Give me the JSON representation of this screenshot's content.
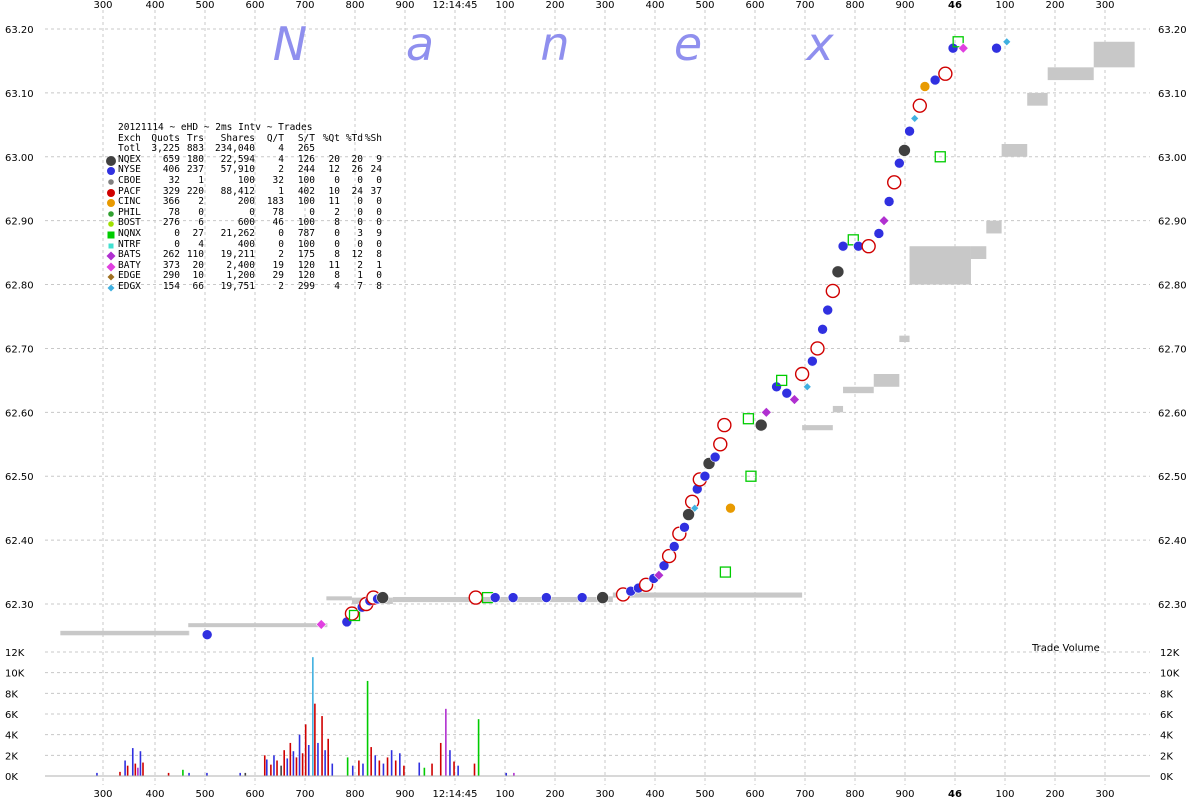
{
  "watermark": [
    "N",
    "a",
    "n",
    "e",
    "x"
  ],
  "time_label": "12:14:45",
  "minute_marker": "46",
  "volume_label": "Trade Volume",
  "stats": {
    "title": "20121114 ~ eHD ~ 2ms Intv ~ Trades",
    "headers": [
      "Exch",
      "Quots",
      "Trs",
      "Shares",
      "Q/T",
      "S/T",
      "%Qt",
      "%Td",
      "%Sh"
    ],
    "total": [
      "Totl",
      "3,225",
      "883",
      "234,040",
      "4",
      "265",
      "",
      "",
      ""
    ],
    "rows": [
      {
        "exch": "NQEX",
        "quots": "659",
        "trs": "180",
        "shares": "22,594",
        "qt": "4",
        "st": "126",
        "pqt": "20",
        "ptd": "20",
        "psh": "9",
        "color": "#404040",
        "shape": "circle-big"
      },
      {
        "exch": "NYSE",
        "quots": "406",
        "trs": "237",
        "shares": "57,910",
        "qt": "2",
        "st": "244",
        "pqt": "12",
        "ptd": "26",
        "psh": "24",
        "color": "#3030e0",
        "shape": "circle"
      },
      {
        "exch": "CBOE",
        "quots": "32",
        "trs": "1",
        "shares": "100",
        "qt": "32",
        "st": "100",
        "pqt": "0",
        "ptd": "0",
        "psh": "0",
        "color": "#808080",
        "shape": "circle-small"
      },
      {
        "exch": "PACF",
        "quots": "329",
        "trs": "220",
        "shares": "88,412",
        "qt": "1",
        "st": "402",
        "pqt": "10",
        "ptd": "24",
        "psh": "37",
        "color": "#d00000",
        "shape": "circle"
      },
      {
        "exch": "CINC",
        "quots": "366",
        "trs": "2",
        "shares": "200",
        "qt": "183",
        "st": "100",
        "pqt": "11",
        "ptd": "0",
        "psh": "0",
        "color": "#e89a00",
        "shape": "circle"
      },
      {
        "exch": "PHIL",
        "quots": "78",
        "trs": "0",
        "shares": "0",
        "qt": "78",
        "st": "0",
        "pqt": "2",
        "ptd": "0",
        "psh": "0",
        "color": "#30a030",
        "shape": "circle-small"
      },
      {
        "exch": "BOST",
        "quots": "276",
        "trs": "6",
        "shares": "600",
        "qt": "46",
        "st": "100",
        "pqt": "8",
        "ptd": "0",
        "psh": "0",
        "color": "#a0e000",
        "shape": "circle-small"
      },
      {
        "exch": "NQNX",
        "quots": "0",
        "trs": "27",
        "shares": "21,262",
        "qt": "0",
        "st": "787",
        "pqt": "0",
        "ptd": "3",
        "psh": "9",
        "color": "#00cc00",
        "shape": "square"
      },
      {
        "exch": "NTRF",
        "quots": "0",
        "trs": "4",
        "shares": "400",
        "qt": "0",
        "st": "100",
        "pqt": "0",
        "ptd": "0",
        "psh": "0",
        "color": "#40e0d0",
        "shape": "square-small"
      },
      {
        "exch": "BATS",
        "quots": "262",
        "trs": "110",
        "shares": "19,211",
        "qt": "2",
        "st": "175",
        "pqt": "8",
        "ptd": "12",
        "psh": "8",
        "color": "#b030d0",
        "shape": "diamond"
      },
      {
        "exch": "BATY",
        "quots": "373",
        "trs": "20",
        "shares": "2,400",
        "qt": "19",
        "st": "120",
        "pqt": "11",
        "ptd": "2",
        "psh": "1",
        "color": "#e040e0",
        "shape": "diamond"
      },
      {
        "exch": "EDGE",
        "quots": "290",
        "trs": "10",
        "shares": "1,200",
        "qt": "29",
        "st": "120",
        "pqt": "8",
        "ptd": "1",
        "psh": "0",
        "color": "#a07020",
        "shape": "diamond-small"
      },
      {
        "exch": "EDGX",
        "quots": "154",
        "trs": "66",
        "shares": "19,751",
        "qt": "2",
        "st": "299",
        "pqt": "4",
        "ptd": "7",
        "psh": "8",
        "color": "#40b0e0",
        "shape": "diamond-small"
      }
    ]
  },
  "chart_data": {
    "type": "scatter",
    "x_ticks_ms": [
      "300",
      "400",
      "500",
      "600",
      "700",
      "800",
      "900",
      "12:14:45",
      "100",
      "200",
      "300",
      "400",
      "500",
      "600",
      "700",
      "800",
      "900",
      "46",
      "100",
      "200",
      "300"
    ],
    "price_ticks": [
      "63.20",
      "63.10",
      "63.00",
      "62.90",
      "62.80",
      "62.70",
      "62.60",
      "62.50",
      "62.40",
      "62.30"
    ],
    "price_range": [
      62.235,
      63.22
    ],
    "volume_ticks": [
      "12K",
      "10K",
      "8K",
      "6K",
      "4K",
      "2K",
      "0K"
    ],
    "volume_range": [
      0,
      12000
    ],
    "x_range_ms": [
      200,
      2360
    ],
    "grid": true,
    "nbbo_band": [
      [
        230,
        62.251,
        62.258
      ],
      [
        480,
        62.251,
        62.258
      ],
      [
        480,
        62.264,
        62.27
      ],
      [
        750,
        62.264,
        62.27
      ],
      [
        750,
        62.306,
        62.312
      ],
      [
        800,
        62.3,
        62.31
      ],
      [
        880,
        62.303,
        62.311
      ],
      [
        1280,
        62.303,
        62.312
      ],
      [
        1310,
        62.31,
        62.318
      ],
      [
        1680,
        62.572,
        62.58
      ],
      [
        1740,
        62.6,
        62.61
      ],
      [
        1760,
        62.63,
        62.64
      ],
      [
        1820,
        62.64,
        62.66
      ],
      [
        1870,
        62.71,
        62.72
      ],
      [
        1890,
        62.8,
        62.86
      ],
      [
        2010,
        62.84,
        62.86
      ],
      [
        2040,
        62.88,
        62.9
      ],
      [
        2070,
        63.0,
        63.02
      ],
      [
        2120,
        63.08,
        63.1
      ],
      [
        2160,
        63.12,
        63.14
      ],
      [
        2250,
        63.14,
        63.18
      ],
      [
        2330,
        63.16,
        63.21
      ]
    ],
    "trades": [
      {
        "t": 517,
        "p": 62.252,
        "ex": "NYSE"
      },
      {
        "t": 740,
        "p": 62.268,
        "ex": "BATY"
      },
      {
        "t": 790,
        "p": 62.272,
        "ex": "NYSE"
      },
      {
        "t": 800,
        "p": 62.285,
        "ex": "PACF"
      },
      {
        "t": 805,
        "p": 62.282,
        "ex": "NQNX"
      },
      {
        "t": 820,
        "p": 62.295,
        "ex": "NYSE"
      },
      {
        "t": 828,
        "p": 62.3,
        "ex": "PACF"
      },
      {
        "t": 835,
        "p": 62.305,
        "ex": "NYSE"
      },
      {
        "t": 842,
        "p": 62.31,
        "ex": "PACF"
      },
      {
        "t": 850,
        "p": 62.308,
        "ex": "NYSE"
      },
      {
        "t": 860,
        "p": 62.31,
        "ex": "NQEX"
      },
      {
        "t": 1042,
        "p": 62.31,
        "ex": "PACF"
      },
      {
        "t": 1065,
        "p": 62.31,
        "ex": "NQNX"
      },
      {
        "t": 1080,
        "p": 62.31,
        "ex": "NYSE"
      },
      {
        "t": 1115,
        "p": 62.31,
        "ex": "NYSE"
      },
      {
        "t": 1180,
        "p": 62.31,
        "ex": "NYSE"
      },
      {
        "t": 1250,
        "p": 62.31,
        "ex": "NYSE"
      },
      {
        "t": 1290,
        "p": 62.31,
        "ex": "NQEX"
      },
      {
        "t": 1330,
        "p": 62.315,
        "ex": "PACF"
      },
      {
        "t": 1345,
        "p": 62.32,
        "ex": "NYSE"
      },
      {
        "t": 1360,
        "p": 62.325,
        "ex": "NYSE"
      },
      {
        "t": 1375,
        "p": 62.33,
        "ex": "PACF"
      },
      {
        "t": 1390,
        "p": 62.34,
        "ex": "NYSE"
      },
      {
        "t": 1400,
        "p": 62.345,
        "ex": "BATS"
      },
      {
        "t": 1410,
        "p": 62.36,
        "ex": "NYSE"
      },
      {
        "t": 1420,
        "p": 62.375,
        "ex": "PACF"
      },
      {
        "t": 1430,
        "p": 62.39,
        "ex": "NYSE"
      },
      {
        "t": 1440,
        "p": 62.41,
        "ex": "PACF"
      },
      {
        "t": 1450,
        "p": 62.42,
        "ex": "NYSE"
      },
      {
        "t": 1458,
        "p": 62.44,
        "ex": "NQEX"
      },
      {
        "t": 1465,
        "p": 62.46,
        "ex": "PACF"
      },
      {
        "t": 1470,
        "p": 62.45,
        "ex": "EDGX"
      },
      {
        "t": 1475,
        "p": 62.48,
        "ex": "NYSE"
      },
      {
        "t": 1480,
        "p": 62.495,
        "ex": "PACF"
      },
      {
        "t": 1490,
        "p": 62.5,
        "ex": "NYSE"
      },
      {
        "t": 1498,
        "p": 62.52,
        "ex": "NQEX"
      },
      {
        "t": 1510,
        "p": 62.53,
        "ex": "NYSE"
      },
      {
        "t": 1520,
        "p": 62.55,
        "ex": "PACF"
      },
      {
        "t": 1528,
        "p": 62.58,
        "ex": "PACF"
      },
      {
        "t": 1540,
        "p": 62.45,
        "ex": "CINC"
      },
      {
        "t": 1530,
        "p": 62.35,
        "ex": "NQNX"
      },
      {
        "t": 1575,
        "p": 62.59,
        "ex": "NQNX"
      },
      {
        "t": 1580,
        "p": 62.5,
        "ex": "NQNX"
      },
      {
        "t": 1600,
        "p": 62.58,
        "ex": "NQEX"
      },
      {
        "t": 1610,
        "p": 62.6,
        "ex": "BATS"
      },
      {
        "t": 1630,
        "p": 62.64,
        "ex": "NYSE"
      },
      {
        "t": 1640,
        "p": 62.65,
        "ex": "NQNX"
      },
      {
        "t": 1650,
        "p": 62.63,
        "ex": "NYSE"
      },
      {
        "t": 1665,
        "p": 62.62,
        "ex": "BATS"
      },
      {
        "t": 1680,
        "p": 62.66,
        "ex": "PACF"
      },
      {
        "t": 1690,
        "p": 62.64,
        "ex": "EDGX"
      },
      {
        "t": 1700,
        "p": 62.68,
        "ex": "NYSE"
      },
      {
        "t": 1710,
        "p": 62.7,
        "ex": "PACF"
      },
      {
        "t": 1720,
        "p": 62.73,
        "ex": "NYSE"
      },
      {
        "t": 1730,
        "p": 62.76,
        "ex": "NYSE"
      },
      {
        "t": 1740,
        "p": 62.79,
        "ex": "PACF"
      },
      {
        "t": 1750,
        "p": 62.82,
        "ex": "NQEX"
      },
      {
        "t": 1760,
        "p": 62.86,
        "ex": "NYSE"
      },
      {
        "t": 1780,
        "p": 62.87,
        "ex": "NQNX"
      },
      {
        "t": 1790,
        "p": 62.86,
        "ex": "NYSE"
      },
      {
        "t": 1810,
        "p": 62.86,
        "ex": "PACF"
      },
      {
        "t": 1830,
        "p": 62.88,
        "ex": "NYSE"
      },
      {
        "t": 1840,
        "p": 62.9,
        "ex": "BATS"
      },
      {
        "t": 1850,
        "p": 62.93,
        "ex": "NYSE"
      },
      {
        "t": 1860,
        "p": 62.96,
        "ex": "PACF"
      },
      {
        "t": 1870,
        "p": 62.99,
        "ex": "NYSE"
      },
      {
        "t": 1880,
        "p": 63.01,
        "ex": "NQEX"
      },
      {
        "t": 1890,
        "p": 63.04,
        "ex": "NYSE"
      },
      {
        "t": 1900,
        "p": 63.06,
        "ex": "EDGX"
      },
      {
        "t": 1910,
        "p": 63.08,
        "ex": "PACF"
      },
      {
        "t": 1920,
        "p": 63.11,
        "ex": "CINC"
      },
      {
        "t": 1940,
        "p": 63.12,
        "ex": "NYSE"
      },
      {
        "t": 1950,
        "p": 63.0,
        "ex": "NQNX"
      },
      {
        "t": 1960,
        "p": 63.13,
        "ex": "PACF"
      },
      {
        "t": 1975,
        "p": 63.17,
        "ex": "NYSE"
      },
      {
        "t": 1985,
        "p": 63.18,
        "ex": "NQNX"
      },
      {
        "t": 1995,
        "p": 63.17,
        "ex": "BATY"
      },
      {
        "t": 2060,
        "p": 63.17,
        "ex": "NYSE"
      },
      {
        "t": 2080,
        "p": 63.18,
        "ex": "EDGX"
      }
    ],
    "volume_bars": [
      {
        "t": 300,
        "v": 300,
        "ex": "NYSE"
      },
      {
        "t": 345,
        "v": 400,
        "ex": "PACF"
      },
      {
        "t": 355,
        "v": 1500,
        "ex": "NYSE"
      },
      {
        "t": 360,
        "v": 1000,
        "ex": "PACF"
      },
      {
        "t": 370,
        "v": 2700,
        "ex": "NYSE"
      },
      {
        "t": 375,
        "v": 1200,
        "ex": "PACF"
      },
      {
        "t": 380,
        "v": 800,
        "ex": "BATS"
      },
      {
        "t": 385,
        "v": 2400,
        "ex": "NYSE"
      },
      {
        "t": 390,
        "v": 1300,
        "ex": "PACF"
      },
      {
        "t": 440,
        "v": 300,
        "ex": "PACF"
      },
      {
        "t": 468,
        "v": 600,
        "ex": "NQNX"
      },
      {
        "t": 480,
        "v": 300,
        "ex": "NYSE"
      },
      {
        "t": 515,
        "v": 300,
        "ex": "NYSE"
      },
      {
        "t": 580,
        "v": 300,
        "ex": "NYSE"
      },
      {
        "t": 590,
        "v": 300,
        "ex": "NQEX"
      },
      {
        "t": 628,
        "v": 2000,
        "ex": "PACF"
      },
      {
        "t": 632,
        "v": 1600,
        "ex": "NYSE"
      },
      {
        "t": 640,
        "v": 1100,
        "ex": "PACF"
      },
      {
        "t": 646,
        "v": 2000,
        "ex": "NYSE"
      },
      {
        "t": 652,
        "v": 1500,
        "ex": "PACF"
      },
      {
        "t": 660,
        "v": 1000,
        "ex": "NQEX"
      },
      {
        "t": 666,
        "v": 2500,
        "ex": "PACF"
      },
      {
        "t": 672,
        "v": 1700,
        "ex": "NYSE"
      },
      {
        "t": 678,
        "v": 3200,
        "ex": "PACF"
      },
      {
        "t": 684,
        "v": 2400,
        "ex": "NYSE"
      },
      {
        "t": 690,
        "v": 1800,
        "ex": "PACF"
      },
      {
        "t": 696,
        "v": 4000,
        "ex": "NYSE"
      },
      {
        "t": 702,
        "v": 2200,
        "ex": "PACF"
      },
      {
        "t": 708,
        "v": 5000,
        "ex": "PACF"
      },
      {
        "t": 714,
        "v": 3000,
        "ex": "NYSE"
      },
      {
        "t": 722,
        "v": 11500,
        "ex": "EDGX"
      },
      {
        "t": 726,
        "v": 7000,
        "ex": "PACF"
      },
      {
        "t": 732,
        "v": 3200,
        "ex": "NYSE"
      },
      {
        "t": 740,
        "v": 5800,
        "ex": "PACF"
      },
      {
        "t": 746,
        "v": 2500,
        "ex": "NYSE"
      },
      {
        "t": 752,
        "v": 3600,
        "ex": "PACF"
      },
      {
        "t": 760,
        "v": 1200,
        "ex": "NYSE"
      },
      {
        "t": 790,
        "v": 1800,
        "ex": "NQNX"
      },
      {
        "t": 800,
        "v": 1000,
        "ex": "NYSE"
      },
      {
        "t": 812,
        "v": 1500,
        "ex": "PACF"
      },
      {
        "t": 820,
        "v": 1200,
        "ex": "NYSE"
      },
      {
        "t": 829,
        "v": 9200,
        "ex": "NQNX"
      },
      {
        "t": 836,
        "v": 2800,
        "ex": "PACF"
      },
      {
        "t": 844,
        "v": 2000,
        "ex": "NYSE"
      },
      {
        "t": 852,
        "v": 1500,
        "ex": "PACF"
      },
      {
        "t": 860,
        "v": 1200,
        "ex": "NYSE"
      },
      {
        "t": 868,
        "v": 1800,
        "ex": "PACF"
      },
      {
        "t": 876,
        "v": 2500,
        "ex": "NYSE"
      },
      {
        "t": 884,
        "v": 1500,
        "ex": "PACF"
      },
      {
        "t": 892,
        "v": 2200,
        "ex": "NYSE"
      },
      {
        "t": 900,
        "v": 1000,
        "ex": "PACF"
      },
      {
        "t": 930,
        "v": 1300,
        "ex": "NYSE"
      },
      {
        "t": 940,
        "v": 800,
        "ex": "NQNX"
      },
      {
        "t": 955,
        "v": 1200,
        "ex": "PACF"
      },
      {
        "t": 972,
        "v": 3200,
        "ex": "PACF"
      },
      {
        "t": 982,
        "v": 6500,
        "ex": "BATS"
      },
      {
        "t": 990,
        "v": 2500,
        "ex": "NYSE"
      },
      {
        "t": 998,
        "v": 1400,
        "ex": "PACF"
      },
      {
        "t": 1006,
        "v": 1000,
        "ex": "NYSE"
      },
      {
        "t": 1038,
        "v": 1200,
        "ex": "PACF"
      },
      {
        "t": 1046,
        "v": 5500,
        "ex": "NQNX"
      },
      {
        "t": 1100,
        "v": 300,
        "ex": "NYSE"
      },
      {
        "t": 1115,
        "v": 300,
        "ex": "BATS"
      }
    ]
  }
}
